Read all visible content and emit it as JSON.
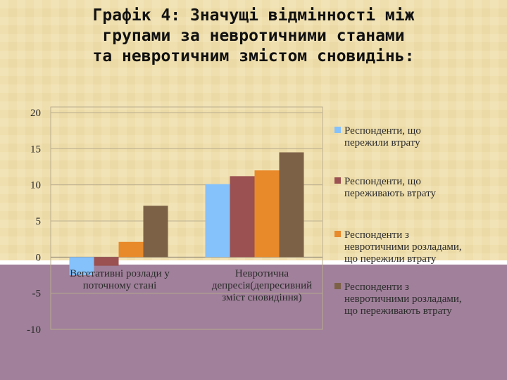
{
  "slide": {
    "title_lines": [
      "Графік 4: Значущі відмінності між",
      "групами за невротичними станами",
      "та невротичним змістом сновидінь:"
    ],
    "colors": {
      "background_top": "#efdfae",
      "background_bottom": "#a0809a",
      "band": "#ffffff"
    }
  },
  "chart_data": {
    "type": "bar",
    "title": "",
    "xlabel": "",
    "ylabel": "",
    "ylim": [
      -10,
      20
    ],
    "yticks": [
      -10,
      -5,
      0,
      5,
      10,
      15,
      20
    ],
    "ytick_labels": [
      "-10",
      "-5",
      "0",
      "5",
      "10",
      "15",
      "20"
    ],
    "grid": "horizontal",
    "legend_position": "right",
    "categories": [
      [
        "Вегетативні розлади у",
        "поточному стані"
      ],
      [
        "Невротична",
        "депресія(депресивний",
        "зміст сновидіння)"
      ]
    ],
    "series": [
      {
        "name": [
          "Респонденти, що",
          "пережили втрату"
        ],
        "color": "#85c1fb",
        "values": [
          -2.5,
          10.1
        ]
      },
      {
        "name": [
          "Респонденти, що",
          "переживають втрату"
        ],
        "color": "#9b5151",
        "values": [
          -1.2,
          11.2
        ]
      },
      {
        "name": [
          "Респонденти з",
          "невротичними розладами,",
          "що пережили втрату"
        ],
        "color": "#e8892a",
        "values": [
          2.1,
          12.0
        ]
      },
      {
        "name": [
          "Респонденти з",
          "невротичними розладами,",
          "що переживають втрату"
        ],
        "color": "#7d6147",
        "values": [
          7.1,
          14.5
        ]
      }
    ]
  }
}
